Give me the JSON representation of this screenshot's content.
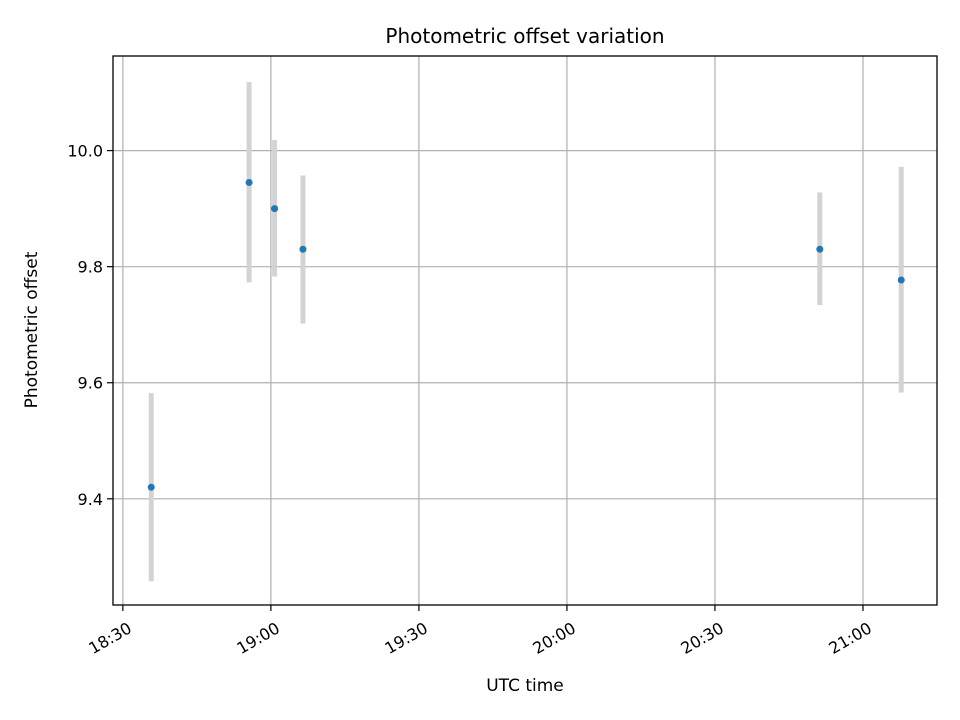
{
  "chart_data": {
    "type": "scatter",
    "title": "Photometric offset variation",
    "xlabel": "UTC time",
    "ylabel": "Photometric offset",
    "grid": true,
    "x_ticks": [
      "18:30",
      "19:00",
      "19:30",
      "20:00",
      "20:30",
      "21:00"
    ],
    "y_ticks": [
      "9.4",
      "9.6",
      "9.8",
      "10.0"
    ],
    "x_range": [
      "18:28",
      "21:15"
    ],
    "y_range": [
      9.217,
      10.163
    ],
    "points": [
      {
        "time": "18:35:45",
        "value": 9.42,
        "err_low": 9.258,
        "err_high": 9.582
      },
      {
        "time": "18:55:35",
        "value": 9.945,
        "err_low": 9.773,
        "err_high": 10.118
      },
      {
        "time": "19:00:45",
        "value": 9.9,
        "err_low": 9.783,
        "err_high": 10.018
      },
      {
        "time": "19:06:30",
        "value": 9.83,
        "err_low": 9.702,
        "err_high": 9.957
      },
      {
        "time": "20:51:15",
        "value": 9.83,
        "err_low": 9.734,
        "err_high": 9.928
      },
      {
        "time": "21:07:45",
        "value": 9.777,
        "err_low": 9.583,
        "err_high": 9.972
      }
    ],
    "colors": {
      "point": "#1f77b4",
      "errorbar": "#d3d3d3",
      "grid": "#b0b0b0",
      "axes": "#000000"
    }
  }
}
